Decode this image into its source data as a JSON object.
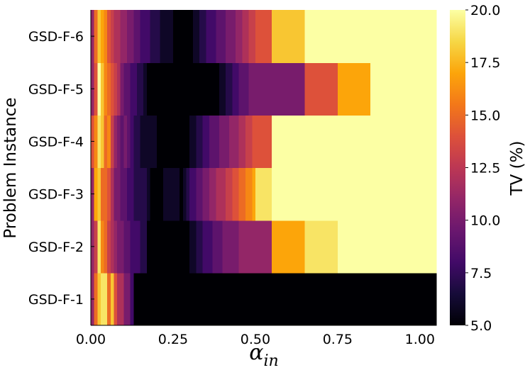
{
  "chart_data": {
    "type": "heatmap",
    "title": "",
    "xlabel": {
      "base": "α",
      "subscript": "in"
    },
    "ylabel": "Problem Instance",
    "colorbar_label": "TV (%)",
    "xlim": [
      0.0,
      1.05
    ],
    "clim": [
      5.0,
      20.0
    ],
    "x_ticks": [
      "0.00",
      "0.25",
      "0.50",
      "0.75",
      "1.00"
    ],
    "colorbar_ticks": [
      "5.0",
      "7.5",
      "10.0",
      "12.5",
      "15.0",
      "17.5",
      "20.0"
    ],
    "colormap": "inferno",
    "rows": [
      "GSD-F-1",
      "GSD-F-2",
      "GSD-F-3",
      "GSD-F-4",
      "GSD-F-5",
      "GSD-F-6"
    ],
    "bin_edges": [
      0.0,
      0.01,
      0.02,
      0.03,
      0.04,
      0.05,
      0.06,
      0.07,
      0.08,
      0.09,
      0.1,
      0.11,
      0.12,
      0.13,
      0.14,
      0.15,
      0.16,
      0.17,
      0.18,
      0.19,
      0.2,
      0.21,
      0.22,
      0.23,
      0.24,
      0.25,
      0.26,
      0.27,
      0.28,
      0.29,
      0.3,
      0.31,
      0.32,
      0.33,
      0.34,
      0.35,
      0.36,
      0.37,
      0.38,
      0.39,
      0.4,
      0.41,
      0.42,
      0.43,
      0.44,
      0.45,
      0.46,
      0.47,
      0.48,
      0.49,
      0.5,
      0.55,
      0.65,
      0.75,
      0.85,
      0.95,
      1.05
    ],
    "values": [
      [
        11,
        15,
        18,
        19,
        19,
        15,
        18,
        14,
        12,
        12,
        10,
        10,
        8,
        5,
        5,
        5,
        5,
        5,
        5,
        5,
        5,
        5,
        5,
        5,
        5,
        5,
        5,
        5,
        5,
        5,
        5,
        5,
        5,
        5,
        5,
        5,
        5,
        5,
        5,
        5,
        5,
        5,
        5,
        5,
        5,
        5,
        5,
        5,
        5,
        5,
        5,
        5,
        5,
        5,
        5,
        5
      ],
      [
        11,
        13,
        19,
        16,
        15,
        13,
        12,
        11,
        10,
        10,
        9,
        9,
        8,
        8,
        8,
        7,
        7,
        5,
        5,
        5,
        5,
        5,
        5,
        5,
        5,
        5,
        5,
        5,
        5,
        5,
        6,
        6,
        7,
        7,
        8,
        8,
        8,
        9,
        9,
        9,
        10,
        10,
        10,
        10,
        10,
        11,
        11,
        11,
        11,
        11,
        11,
        17,
        19,
        20,
        20,
        20
      ],
      [
        11,
        17,
        18,
        15,
        15,
        14,
        12,
        10,
        10,
        9,
        9,
        8,
        8,
        7,
        7,
        7,
        7,
        6,
        5,
        5,
        5,
        5,
        6,
        6,
        6,
        6,
        6,
        5,
        6,
        7,
        8,
        8,
        9,
        9,
        10,
        10,
        11,
        11,
        12,
        12,
        12,
        13,
        13,
        14,
        14,
        15,
        15,
        16,
        16,
        17,
        19,
        20,
        20,
        20,
        20,
        20
      ],
      [
        14,
        16,
        19,
        18,
        15,
        16,
        13,
        11,
        10,
        9,
        10,
        9,
        8,
        7,
        7,
        6,
        6,
        6,
        6,
        6,
        5,
        5,
        5,
        5,
        5,
        5,
        5,
        5,
        5,
        5,
        6,
        6,
        7,
        7,
        8,
        8,
        9,
        9,
        9,
        10,
        10,
        10,
        11,
        11,
        11,
        12,
        12,
        13,
        13,
        14,
        14,
        20,
        20,
        20,
        20,
        20
      ],
      [
        11,
        14,
        20,
        18,
        16,
        15,
        14,
        13,
        12,
        10,
        9,
        9,
        8,
        8,
        7,
        7,
        6,
        5,
        5,
        5,
        5,
        5,
        5,
        5,
        5,
        5,
        5,
        5,
        5,
        5,
        5,
        5,
        5,
        5,
        5,
        5,
        5,
        5,
        5,
        6,
        6,
        7,
        7,
        8,
        8,
        9,
        9,
        9,
        10,
        10,
        10,
        10,
        14,
        17,
        20,
        20
      ],
      [
        11,
        15,
        18,
        17,
        16,
        14,
        13,
        12,
        12,
        11,
        11,
        10,
        10,
        9,
        9,
        8,
        8,
        8,
        7,
        7,
        7,
        6,
        6,
        6,
        6,
        5,
        5,
        5,
        5,
        5,
        5,
        6,
        6,
        7,
        7,
        8,
        8,
        8,
        9,
        9,
        9,
        10,
        10,
        10,
        11,
        11,
        12,
        12,
        13,
        13,
        14,
        18,
        20,
        20,
        20,
        20
      ]
    ]
  }
}
